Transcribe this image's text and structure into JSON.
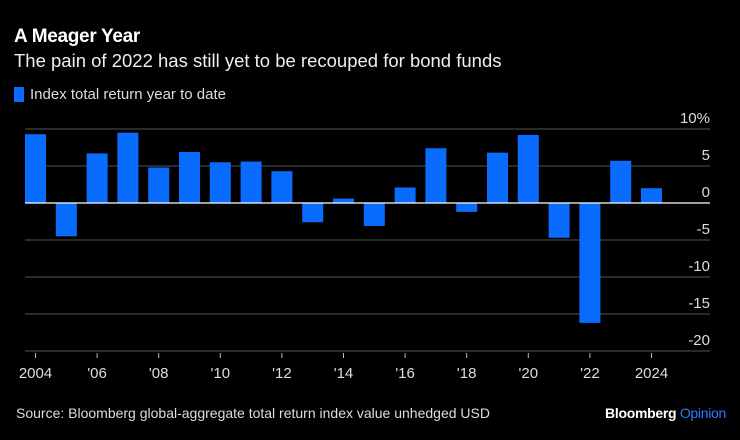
{
  "header": {
    "title": "A Meager Year",
    "subtitle": "The pain of 2022 has still yet to be recouped for bond funds"
  },
  "legend": {
    "label": "Index total return year to date",
    "color": "#0a6cff"
  },
  "footer": {
    "source": "Source: Bloomberg global-aggregate total return index value unhedged USD",
    "brand_main": "Bloomberg",
    "brand_accent": "Opinion"
  },
  "chart_data": {
    "type": "bar",
    "title": "A Meager Year",
    "subtitle": "The pain of 2022 has still yet to be recouped for bond funds",
    "xlabel": "",
    "ylabel": "",
    "ylim": [
      -20,
      10
    ],
    "y_ticks": [
      10,
      5,
      0,
      -5,
      -10,
      -15,
      -20
    ],
    "y_tick_labels": [
      "10%",
      "5",
      "0",
      "-5",
      "-10",
      "-15",
      "-20"
    ],
    "y_axis_side": "right",
    "grid": true,
    "legend_position": "top-left",
    "categories": [
      "2004",
      "2005",
      "2006",
      "2007",
      "2008",
      "2009",
      "2010",
      "2011",
      "2012",
      "2013",
      "2014",
      "2015",
      "2016",
      "2017",
      "2018",
      "2019",
      "2020",
      "2021",
      "2022",
      "2023",
      "2024"
    ],
    "x_tick_labels": [
      {
        "category": "2004",
        "label": "2004"
      },
      {
        "category": "2006",
        "label": "'06"
      },
      {
        "category": "2008",
        "label": "'08"
      },
      {
        "category": "2010",
        "label": "'10"
      },
      {
        "category": "2012",
        "label": "'12"
      },
      {
        "category": "2014",
        "label": "'14"
      },
      {
        "category": "2016",
        "label": "'16"
      },
      {
        "category": "2018",
        "label": "'18"
      },
      {
        "category": "2020",
        "label": "'20"
      },
      {
        "category": "2022",
        "label": "'22"
      },
      {
        "category": "2024",
        "label": "2024"
      }
    ],
    "series": [
      {
        "name": "Index total return year to date",
        "color": "#0a6cff",
        "values": [
          9.3,
          -4.5,
          6.7,
          9.5,
          4.8,
          6.9,
          5.5,
          5.6,
          4.3,
          -2.6,
          0.6,
          -3.1,
          2.1,
          7.4,
          -1.2,
          6.8,
          9.2,
          -4.7,
          -16.2,
          5.7,
          2.0
        ]
      }
    ]
  }
}
